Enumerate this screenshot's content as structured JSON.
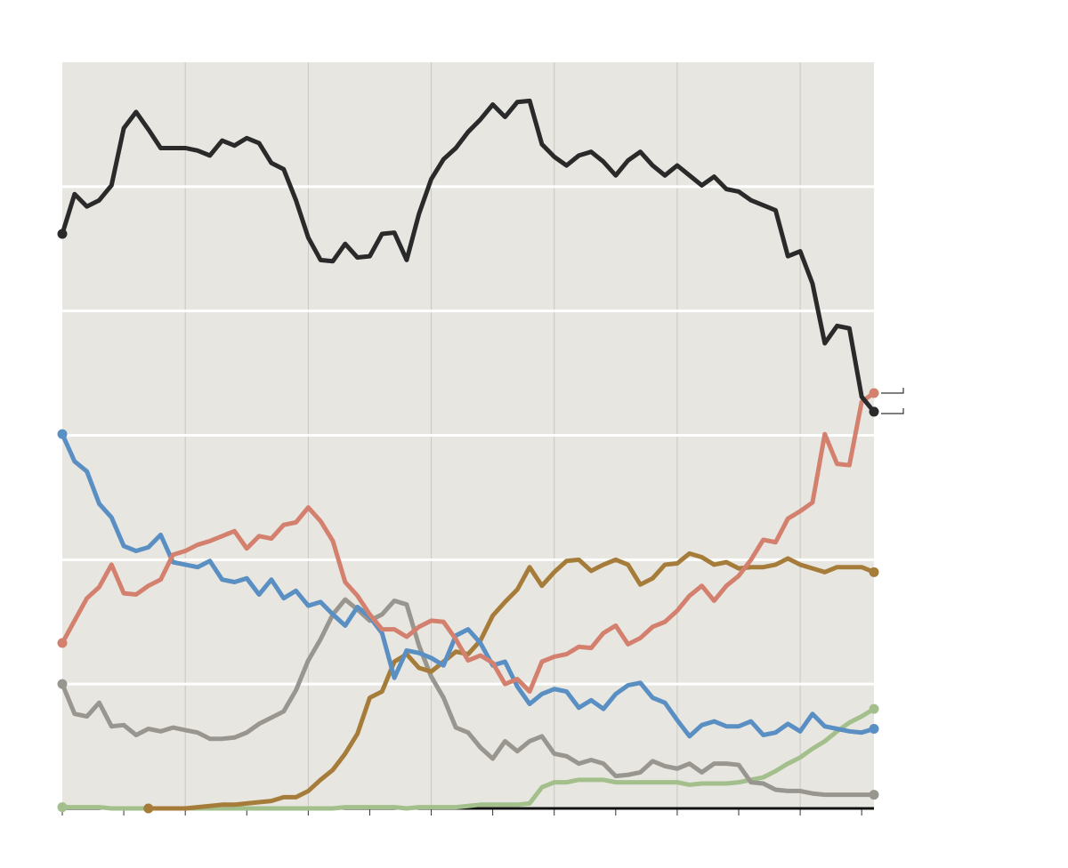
{
  "chart_data": {
    "type": "line",
    "x": [
      0,
      1,
      2,
      3,
      4,
      5,
      6,
      7,
      8,
      9,
      10,
      11,
      12,
      13,
      14,
      15,
      16,
      17,
      18,
      19,
      20,
      21,
      22,
      23,
      24,
      25,
      26,
      27,
      28,
      29,
      30,
      31,
      32,
      33,
      34,
      35,
      36,
      37,
      38,
      39,
      40,
      41,
      42,
      43,
      44,
      45,
      46,
      47,
      48,
      49,
      50,
      51,
      52,
      53,
      54,
      55,
      56,
      57,
      58,
      59,
      60,
      61,
      62,
      63,
      64,
      65,
      66
    ],
    "xlim": [
      0,
      66
    ],
    "xticks": [
      0,
      5,
      10,
      15,
      20,
      25,
      30,
      35,
      40,
      45,
      50,
      55,
      60,
      65
    ],
    "ylim": [
      0,
      60
    ],
    "yticks": [
      10,
      20,
      30,
      40,
      50
    ],
    "grid": true,
    "background": "#e8e6e0",
    "series": [
      {
        "color": "#a3bf8c",
        "values": [
          0.1,
          0.1,
          0.1,
          0.1,
          0.0,
          0.0,
          0.0,
          0.0,
          0.0,
          0.0,
          0.0,
          0.0,
          0.0,
          0.0,
          0.0,
          0.0,
          0.0,
          0.0,
          0.0,
          0.0,
          0.0,
          0.0,
          0.0,
          0.1,
          0.1,
          0.1,
          0.1,
          0.1,
          0.0,
          0.1,
          0.1,
          0.1,
          0.1,
          0.2,
          0.3,
          0.3,
          0.3,
          0.3,
          0.4,
          1.7,
          2.1,
          2.1,
          2.3,
          2.3,
          2.3,
          2.1,
          2.1,
          2.1,
          2.1,
          2.1,
          2.1,
          1.9,
          2.0,
          2.0,
          2.0,
          2.1,
          2.3,
          2.5,
          3.0,
          3.6,
          4.1,
          4.8,
          5.4,
          6.2,
          6.9,
          7.4,
          8.0
        ]
      },
      {
        "color": "#999690",
        "values": [
          10.0,
          7.6,
          7.4,
          8.5,
          6.6,
          6.7,
          5.9,
          6.4,
          6.2,
          6.5,
          6.3,
          6.1,
          5.6,
          5.6,
          5.7,
          6.1,
          6.8,
          7.3,
          7.8,
          9.5,
          11.9,
          13.6,
          15.6,
          16.8,
          16.0,
          15.1,
          15.6,
          16.7,
          16.4,
          13.1,
          10.6,
          8.9,
          6.5,
          6.1,
          4.9,
          4.0,
          5.4,
          4.6,
          5.4,
          5.8,
          4.4,
          4.2,
          3.6,
          3.9,
          3.6,
          2.6,
          2.7,
          2.9,
          3.8,
          3.4,
          3.2,
          3.6,
          2.9,
          3.6,
          3.6,
          3.5,
          2.1,
          2.0,
          1.5,
          1.4,
          1.4,
          1.2,
          1.1,
          1.1,
          1.1,
          1.1,
          1.1
        ]
      },
      {
        "color": "#a67c3a",
        "values": [
          null,
          null,
          null,
          null,
          null,
          null,
          null,
          0,
          0,
          0,
          0,
          0.1,
          0.2,
          0.3,
          0.3,
          0.4,
          0.5,
          0.6,
          0.9,
          0.9,
          1.4,
          2.3,
          3.1,
          4.4,
          6.0,
          8.9,
          9.4,
          11.8,
          12.4,
          11.3,
          11.0,
          11.8,
          12.6,
          12.4,
          13.5,
          15.5,
          16.6,
          17.6,
          19.4,
          17.9,
          19.0,
          19.9,
          20.0,
          19.1,
          19.6,
          20.0,
          19.6,
          18.0,
          18.5,
          19.6,
          19.7,
          20.5,
          20.2,
          19.6,
          19.8,
          19.3,
          19.4,
          19.4,
          19.6,
          20.1,
          19.6,
          19.3,
          19.0,
          19.4,
          19.4,
          19.4,
          19.0
        ]
      },
      {
        "color": "#5a8fc4",
        "values": [
          30.1,
          27.9,
          27.1,
          24.5,
          23.4,
          21.1,
          20.7,
          21.0,
          22.0,
          19.8,
          19.6,
          19.4,
          19.9,
          18.4,
          18.2,
          18.5,
          17.2,
          18.4,
          16.9,
          17.5,
          16.3,
          16.6,
          15.6,
          14.7,
          16.2,
          15.4,
          14.1,
          10.5,
          12.7,
          12.5,
          12.1,
          11.5,
          13.9,
          14.4,
          13.3,
          11.5,
          11.8,
          9.8,
          8.4,
          9.2,
          9.6,
          9.4,
          8.1,
          8.7,
          8.0,
          9.2,
          9.9,
          10.1,
          8.9,
          8.5,
          7.1,
          5.8,
          6.7,
          7.0,
          6.6,
          6.6,
          7.0,
          5.9,
          6.1,
          6.8,
          6.2,
          7.6,
          6.6,
          6.4,
          6.2,
          6.1,
          6.4
        ]
      },
      {
        "color": "#d4806f",
        "values": [
          13.3,
          15.1,
          16.9,
          17.8,
          19.6,
          17.3,
          17.2,
          17.9,
          18.4,
          20.4,
          20.7,
          21.2,
          21.5,
          21.9,
          22.3,
          20.9,
          21.9,
          21.7,
          22.8,
          23.0,
          24.2,
          23.1,
          21.5,
          18.2,
          17.1,
          15.6,
          14.4,
          14.4,
          13.8,
          14.6,
          15.1,
          15.0,
          13.6,
          11.9,
          12.3,
          11.7,
          10.0,
          10.4,
          9.4,
          11.8,
          12.2,
          12.4,
          13.0,
          12.9,
          14.1,
          14.7,
          13.2,
          13.7,
          14.6,
          15.0,
          15.9,
          17.1,
          17.9,
          16.7,
          17.9,
          18.7,
          20.0,
          21.6,
          21.4,
          23.3,
          23.9,
          24.6,
          30.1,
          27.7,
          27.6,
          32.7,
          33.4
        ]
      },
      {
        "color": "#2a2a2a",
        "values": [
          46.2,
          49.4,
          48.4,
          48.9,
          50.1,
          54.7,
          56.0,
          54.6,
          53.1,
          53.1,
          53.1,
          52.9,
          52.5,
          53.7,
          53.3,
          53.9,
          53.5,
          51.9,
          51.4,
          48.9,
          45.9,
          44.1,
          44.0,
          45.4,
          44.3,
          44.4,
          46.2,
          46.3,
          44.1,
          47.8,
          50.6,
          52.2,
          53.1,
          54.4,
          55.4,
          56.6,
          55.6,
          56.8,
          56.9,
          53.4,
          52.4,
          51.7,
          52.5,
          52.8,
          52.0,
          50.9,
          52.1,
          52.8,
          51.7,
          50.9,
          51.7,
          50.9,
          50.1,
          50.8,
          49.8,
          49.6,
          48.9,
          48.5,
          48.1,
          44.4,
          44.8,
          42.2,
          37.4,
          38.8,
          38.6,
          33.1,
          31.9
        ]
      }
    ]
  }
}
